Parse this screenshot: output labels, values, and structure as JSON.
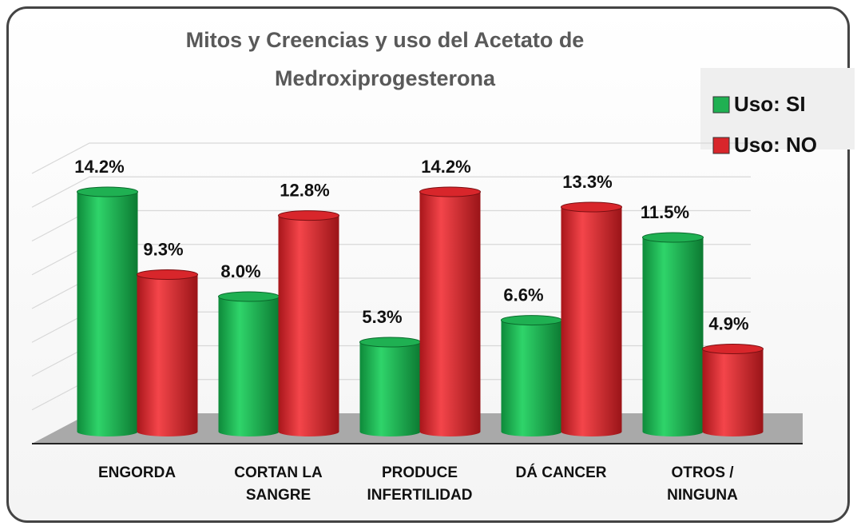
{
  "chart_data": {
    "type": "bar",
    "title": "Mitos y Creencias y uso del Acetato de Medroxiprogesterona",
    "categories": [
      "ENGORDA",
      "CORTAN LA SANGRE",
      "PRODUCE INFERTILIDAD",
      "DÁ CANCER",
      "OTROS / NINGUNA"
    ],
    "series": [
      {
        "name": "Uso: SI",
        "color": "#1fb052",
        "values": [
          14.2,
          8.0,
          5.3,
          6.6,
          11.5
        ],
        "value_labels": [
          "14.2%",
          "8.0%",
          "5.3%",
          "6.6%",
          "11.5%"
        ]
      },
      {
        "name": "Uso: NO",
        "color": "#d8262b",
        "values": [
          9.3,
          12.8,
          14.2,
          13.3,
          4.9
        ],
        "value_labels": [
          "9.3%",
          "12.8%",
          "14.2%",
          "13.3%",
          "4.9%"
        ]
      }
    ],
    "ylim": [
      0,
      16
    ],
    "yticks": [
      0,
      2,
      4,
      6,
      8,
      10,
      12,
      14,
      16
    ],
    "grid": true,
    "legend": "top-right"
  }
}
